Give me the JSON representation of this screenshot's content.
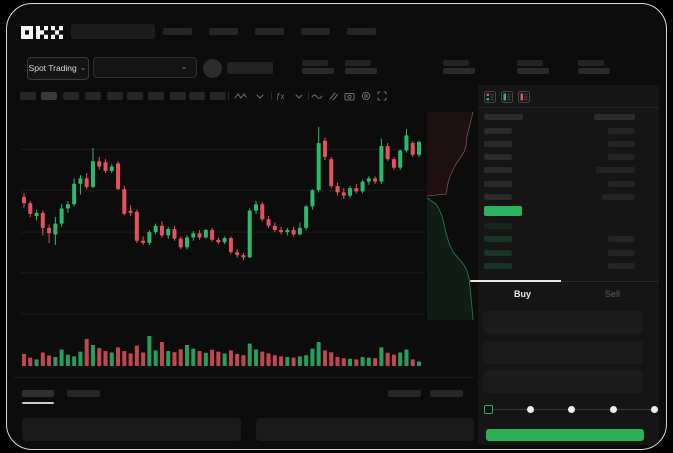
{
  "app": {
    "logo": "OKX"
  },
  "header": {
    "nav_placeholder_count": 5,
    "search_placeholder": ""
  },
  "market_bar": {
    "market_selector_label": "Spot Trading",
    "chevron": "⌄",
    "stat_pair_count": 5
  },
  "chart_toolbar": {
    "placeholder_pill_count": 10,
    "icons": [
      "candle-style-icon",
      "style-dropdown-icon",
      "indicator-fx-icon",
      "indicator-dropdown-icon",
      "line-tool-icon",
      "compare-icon",
      "snapshot-icon",
      "settings-icon",
      "fullscreen-icon"
    ],
    "fx_glyph": "ƒx"
  },
  "orderbook": {
    "view_toggle_icons": [
      "orderbook-combined-icon",
      "orderbook-bids-icon",
      "orderbook-asks-icon"
    ],
    "ask_row_count": 6,
    "bid_row_count": 4,
    "bid_right_bar_count": 3,
    "last_price_highlight": true
  },
  "trade_panel": {
    "buy_tab": "Buy",
    "sell_tab": "Sell",
    "input_field_count": 3,
    "slider_positions": 5,
    "slider_active_index": 0
  },
  "bottom_panel": {
    "tab_placeholder_count": 2,
    "right_placeholder_count": 2,
    "field_count": 2
  },
  "colors": {
    "up": "#2cb96c",
    "down": "#e4525e",
    "last_price_bg": "#2bb45f",
    "buy_button": "#2db158",
    "slider_accent": "#2bb45f",
    "active_text": "#ececec",
    "dim_text": "#5d5d5d",
    "panel_bg": "#151515",
    "screen_bg": "#0c0c0c",
    "grid": "#1b1b1b",
    "depth_ask_line": "#8a4a52",
    "depth_bid_line": "#2f7d55"
  },
  "chart_data": {
    "type": "candlestick",
    "note": "no numeric axis labels visible in mockup; prices normalized to 0-100 scale read from pixel positions",
    "price_range": [
      0,
      100
    ],
    "gridlines_y_values": [
      84,
      65,
      45.5,
      26.5,
      7.5
    ],
    "candles_ohlc": [
      [
        62,
        63.5,
        57,
        59
      ],
      [
        59,
        60,
        52.5,
        54
      ],
      [
        53,
        56,
        51,
        54.5
      ],
      [
        54.5,
        55.5,
        44,
        47.5
      ],
      [
        47.5,
        49,
        40.5,
        45
      ],
      [
        44.5,
        52.5,
        39.5,
        49.5
      ],
      [
        49.5,
        58.5,
        48,
        56.5
      ],
      [
        56.5,
        60,
        54.5,
        58.5
      ],
      [
        58.5,
        70.5,
        57.5,
        68
      ],
      [
        68,
        72,
        63,
        70.5
      ],
      [
        70.5,
        73,
        65.5,
        66.5
      ],
      [
        66.5,
        84.7,
        66,
        78.5
      ],
      [
        78.5,
        80.5,
        74.5,
        76
      ],
      [
        78,
        79.5,
        73,
        74
      ],
      [
        74,
        77,
        73,
        76
      ],
      [
        77.5,
        78.5,
        65,
        65.5
      ],
      [
        65.5,
        67,
        53.5,
        54
      ],
      [
        55.5,
        58,
        53,
        54.5
      ],
      [
        55,
        56,
        40.5,
        41.5
      ],
      [
        41.5,
        43.5,
        39.5,
        40.5
      ],
      [
        40.5,
        46.5,
        39.5,
        45.5
      ],
      [
        45.5,
        49.5,
        44.5,
        48.5
      ],
      [
        48.5,
        50.5,
        43,
        44
      ],
      [
        44,
        48,
        42.5,
        47
      ],
      [
        47,
        48.5,
        41.5,
        42.5
      ],
      [
        42.5,
        43.5,
        37.5,
        38.5
      ],
      [
        38.5,
        44,
        37.5,
        43
      ],
      [
        43,
        46,
        41.5,
        45
      ],
      [
        45,
        46.5,
        42,
        43
      ],
      [
        43,
        47,
        42.5,
        46.5
      ],
      [
        46.5,
        47.5,
        41,
        42
      ],
      [
        42,
        43,
        40,
        40.8
      ],
      [
        40.8,
        43.5,
        40,
        42.8
      ],
      [
        42.8,
        43.5,
        35.5,
        36.2
      ],
      [
        36.2,
        37.5,
        33.5,
        34.8
      ],
      [
        34.8,
        36,
        32.5,
        33.8
      ],
      [
        33.8,
        56.5,
        33.5,
        55.5
      ],
      [
        55.5,
        60,
        54,
        58.5
      ],
      [
        58.5,
        59.5,
        50.5,
        51.5
      ],
      [
        51.5,
        53,
        47.5,
        48.5
      ],
      [
        48.5,
        50,
        45.5,
        46.5
      ],
      [
        46.5,
        48,
        44.5,
        45.5
      ],
      [
        45.5,
        47.5,
        44,
        46.5
      ],
      [
        46.5,
        48,
        43.5,
        44.5
      ],
      [
        44.5,
        50,
        44,
        47.5
      ],
      [
        47.5,
        58,
        46.5,
        57.5
      ],
      [
        57.5,
        65.5,
        56,
        65
      ],
      [
        65,
        94.5,
        64,
        87
      ],
      [
        88,
        89.5,
        79,
        80.5
      ],
      [
        79.5,
        80.5,
        66,
        67
      ],
      [
        67,
        68.5,
        62.5,
        64
      ],
      [
        64,
        66,
        61,
        62.5
      ],
      [
        62.5,
        67,
        61.5,
        66
      ],
      [
        66,
        68,
        63.5,
        64.5
      ],
      [
        64.5,
        70,
        63.5,
        69
      ],
      [
        69,
        71.5,
        67.5,
        70.5
      ],
      [
        70.5,
        71.5,
        68,
        69
      ],
      [
        69,
        89,
        68,
        85.5
      ],
      [
        85.5,
        87,
        78.5,
        79.5
      ],
      [
        79.5,
        80.5,
        74.5,
        75.5
      ],
      [
        75.5,
        84,
        74.5,
        83.5
      ],
      [
        83.5,
        93.5,
        82.5,
        90.5
      ],
      [
        87,
        88,
        80.5,
        81.5
      ],
      [
        81.5,
        88,
        80.5,
        87.5
      ]
    ],
    "volume": [
      40,
      28,
      22,
      45,
      35,
      30,
      55,
      38,
      32,
      48,
      90,
      70,
      60,
      50,
      45,
      62,
      50,
      42,
      68,
      45,
      100,
      52,
      80,
      50,
      46,
      56,
      70,
      58,
      50,
      44,
      54,
      48,
      42,
      52,
      40,
      36,
      75,
      55,
      48,
      42,
      36,
      32,
      30,
      28,
      32,
      36,
      58,
      80,
      52,
      46,
      30,
      26,
      24,
      22,
      30,
      28,
      26,
      62,
      44,
      38,
      45,
      55,
      22,
      15
    ],
    "depth": {
      "asks_curve_frac": [
        [
          0,
          1.0
        ],
        [
          0.095,
          0.956
        ],
        [
          0.19,
          0.913
        ],
        [
          0.286,
          0.87
        ],
        [
          0.405,
          0.848
        ],
        [
          0.476,
          0.804
        ],
        [
          0.548,
          0.717
        ],
        [
          0.619,
          0.63
        ],
        [
          0.69,
          0.565
        ],
        [
          0.762,
          0.5
        ],
        [
          0.845,
          0.457
        ],
        [
          0.917,
          0.435
        ],
        [
          0.976,
          0.413
        ],
        [
          1.0,
          0
        ]
      ],
      "bids_curve_frac": [
        [
          0,
          0
        ],
        [
          0.049,
          0.196
        ],
        [
          0.09,
          0.261
        ],
        [
          0.148,
          0.326
        ],
        [
          0.213,
          0.37
        ],
        [
          0.287,
          0.413
        ],
        [
          0.369,
          0.478
        ],
        [
          0.443,
          0.565
        ],
        [
          0.5,
          0.696
        ],
        [
          0.549,
          0.804
        ],
        [
          0.598,
          0.87
        ],
        [
          0.656,
          0.913
        ],
        [
          0.73,
          0.935
        ],
        [
          0.811,
          0.957
        ],
        [
          0.902,
          0.978
        ],
        [
          1.0,
          1.0
        ]
      ]
    }
  }
}
